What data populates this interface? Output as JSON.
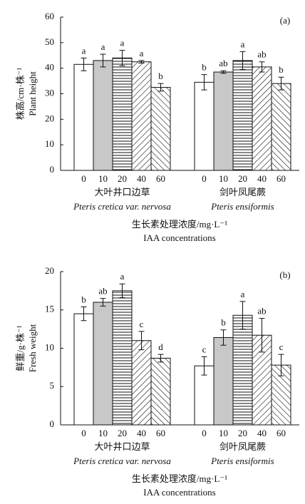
{
  "chart_data": [
    {
      "type": "bar",
      "panel_label": "(a)",
      "y_label": [
        "株高/cm·株⁻¹",
        "Plant height"
      ],
      "x_label": [
        "生长素处理浓度/mg·L⁻¹",
        "IAA concentrations"
      ],
      "categories": [
        "0",
        "10",
        "20",
        "40",
        "60"
      ],
      "bar_styles": [
        "white",
        "gray",
        "hlines",
        "diag-up",
        "diag-down"
      ],
      "groups": [
        {
          "name": "大叶井口边草",
          "latin": "Pteris cretica var. nervosa",
          "values": [
            41.5,
            43,
            44,
            42.5,
            32.5
          ],
          "errors": [
            2.5,
            2.5,
            3,
            0.5,
            1.5
          ],
          "letters": [
            "a",
            "a",
            "a",
            "a",
            "b"
          ]
        },
        {
          "name": "剑叶凤尾蕨",
          "latin": "Pteris ensiformis",
          "values": [
            34.5,
            38.5,
            43,
            40.5,
            34
          ],
          "errors": [
            3,
            0.5,
            3.5,
            2,
            2.5
          ],
          "letters": [
            "b",
            "ab",
            "a",
            "ab",
            "b"
          ]
        }
      ],
      "ylim": [
        0,
        60
      ],
      "yticks": [
        0,
        10,
        20,
        30,
        40,
        50,
        60
      ]
    },
    {
      "type": "bar",
      "panel_label": "(b)",
      "y_label": [
        "鲜重/g·株⁻¹",
        "Fresh weight"
      ],
      "x_label": [
        "生长素处理浓度/mg·L⁻¹",
        "IAA concentrations"
      ],
      "categories": [
        "0",
        "10",
        "20",
        "40",
        "60"
      ],
      "bar_styles": [
        "white",
        "gray",
        "hlines",
        "diag-up",
        "diag-down"
      ],
      "groups": [
        {
          "name": "大叶井口边草",
          "latin": "Pteris cretica var. nervosa",
          "values": [
            14.5,
            16,
            17.5,
            11,
            8.7
          ],
          "errors": [
            0.9,
            0.5,
            0.9,
            1.2,
            0.5
          ],
          "letters": [
            "b",
            "ab",
            "a",
            "c",
            "d"
          ]
        },
        {
          "name": "剑叶凤尾蕨",
          "latin": "Pteris ensiformis",
          "values": [
            7.7,
            11.4,
            14.3,
            11.7,
            7.8
          ],
          "errors": [
            1.2,
            1,
            1.8,
            2.2,
            1.4
          ],
          "letters": [
            "c",
            "b",
            "a",
            "ab",
            "c"
          ]
        }
      ],
      "ylim": [
        0,
        20
      ],
      "yticks": [
        0,
        5,
        10,
        15,
        20
      ]
    }
  ]
}
